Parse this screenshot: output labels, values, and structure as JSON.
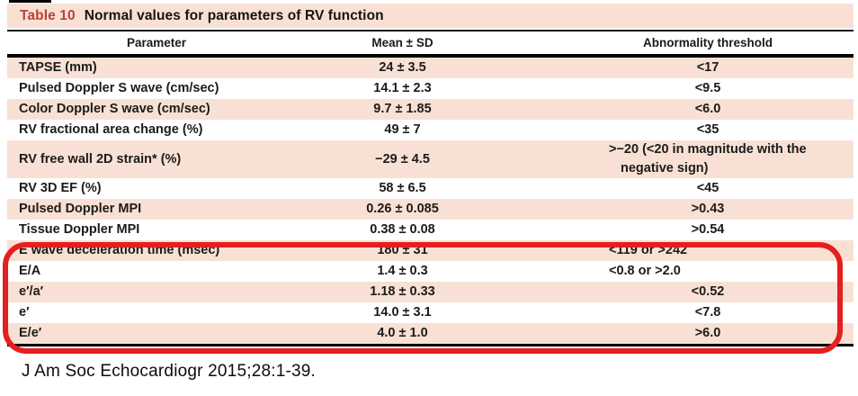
{
  "table": {
    "title_label": "Table 10",
    "title": "Normal values for parameters of RV function",
    "columns": [
      "Parameter",
      "Mean ± SD",
      "Abnormality threshold"
    ],
    "rows": [
      {
        "parameter": "TAPSE (mm)",
        "mean": "24 ± 3.5",
        "threshold": "<17"
      },
      {
        "parameter": "Pulsed Doppler S wave (cm/sec)",
        "mean": "14.1 ± 2.3",
        "threshold": "<9.5"
      },
      {
        "parameter": "Color Doppler S wave (cm/sec)",
        "mean": "9.7 ± 1.85",
        "threshold": "<6.0"
      },
      {
        "parameter": "RV fractional area change (%)",
        "mean": "49 ± 7",
        "threshold": "<35"
      },
      {
        "parameter": "RV free wall 2D strain* (%)",
        "mean": "−29 ± 4.5",
        "threshold": ">−20 (<20 in magnitude with the\nnegative sign)",
        "threshold_align": "left"
      },
      {
        "parameter": "RV 3D EF (%)",
        "mean": "58 ± 6.5",
        "threshold": "<45"
      },
      {
        "parameter": "Pulsed Doppler MPI",
        "mean": "0.26 ± 0.085",
        "threshold": ">0.43"
      },
      {
        "parameter": "Tissue Doppler MPI",
        "mean": "0.38 ± 0.08",
        "threshold": ">0.54"
      },
      {
        "parameter": "E wave deceleration time (msec)",
        "mean": "180 ± 31",
        "threshold": "<119 or >242",
        "threshold_align": "left"
      },
      {
        "parameter": "E/A",
        "mean": "1.4 ± 0.3",
        "threshold": "<0.8 or >2.0",
        "threshold_align": "left"
      },
      {
        "parameter": "e′/a′",
        "mean": "1.18 ± 0.33",
        "threshold": "<0.52"
      },
      {
        "parameter": "e′",
        "mean": "14.0 ± 3.1",
        "threshold": "<7.8"
      },
      {
        "parameter": "E/e′",
        "mean": "4.0 ± 1.0",
        "threshold": ">6.0"
      }
    ],
    "highlighted_rows": [
      "E wave deceleration time (msec)",
      "E/A",
      "e′/a′",
      "e′",
      "E/e′"
    ]
  },
  "citation": "J Am Soc Echocardiogr 2015;28:1-39.",
  "colors": {
    "stripe": "#f8e1d4",
    "title_red": "#bb4137",
    "highlight_red": "#e51f1f"
  }
}
